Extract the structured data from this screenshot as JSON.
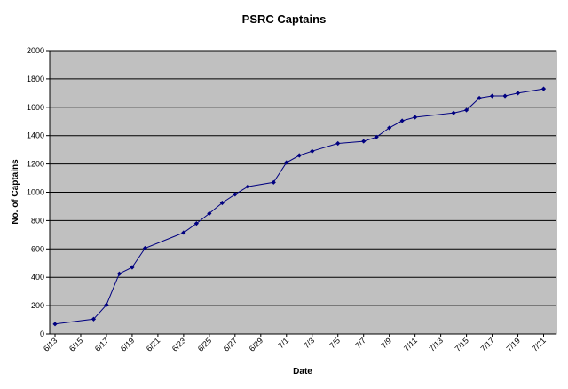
{
  "chart_data": {
    "type": "line",
    "title": "PSRC Captains",
    "xlabel": "Date",
    "ylabel": "No. of Captains",
    "ylim": [
      0,
      2000
    ],
    "ytick_step": 200,
    "x_tick_labels": [
      "6/13",
      "6/15",
      "6/17",
      "6/19",
      "6/21",
      "6/23",
      "6/25",
      "6/27",
      "6/29",
      "7/1",
      "7/3",
      "7/5",
      "7/7",
      "7/9",
      "7/11",
      "7/13",
      "7/15",
      "7/17",
      "7/19",
      "7/21"
    ],
    "grid": "horizontal",
    "legend": "none",
    "colors": {
      "plot_bg": "#c0c0c0",
      "line": "#000080",
      "marker": "#000080",
      "grid": "#000000"
    },
    "series": [
      {
        "x": [
          "6/13",
          "6/16",
          "6/17",
          "6/18",
          "6/19",
          "6/20",
          "6/23",
          "6/24",
          "6/25",
          "6/26",
          "6/27",
          "6/28",
          "6/30",
          "7/1",
          "7/2",
          "7/3",
          "7/5",
          "7/7",
          "7/8",
          "7/9",
          "7/10",
          "7/11",
          "7/14",
          "7/15",
          "7/16",
          "7/17",
          "7/18",
          "7/19",
          "7/21"
        ],
        "values": [
          70,
          105,
          205,
          425,
          470,
          605,
          715,
          780,
          850,
          925,
          985,
          1040,
          1070,
          1210,
          1260,
          1290,
          1345,
          1360,
          1390,
          1455,
          1505,
          1530,
          1560,
          1580,
          1665,
          1680,
          1680,
          1700,
          1730
        ]
      }
    ]
  }
}
